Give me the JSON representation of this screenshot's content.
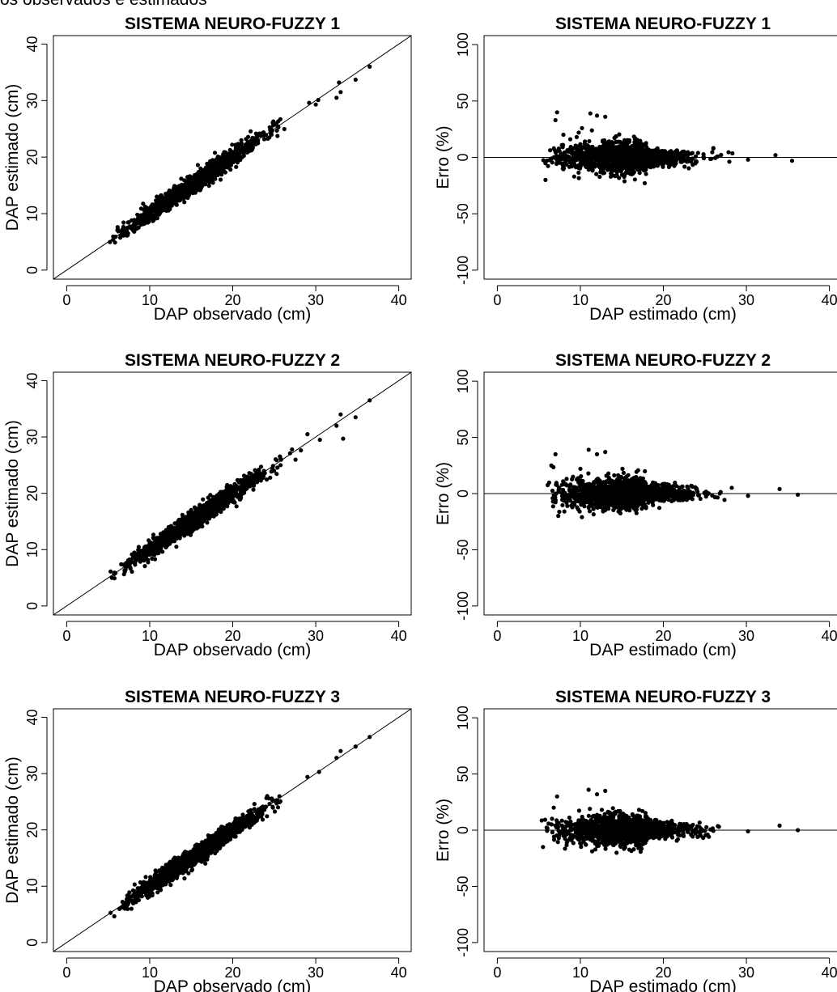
{
  "header_text": "os observados e estimados",
  "chart_data": [
    {
      "type": "scatter",
      "panel": "observed-vs-estimated",
      "title": "SISTEMA NEURO-FUZZY 1",
      "xlabel": "DAP observado (cm)",
      "ylabel": "DAP estimado (cm)",
      "xlim": [
        0,
        40
      ],
      "ylim": [
        0,
        40
      ],
      "xticks": [
        0,
        10,
        20,
        30,
        40
      ],
      "yticks": [
        0,
        10,
        20,
        30,
        40
      ],
      "reference_line": "y = x",
      "seed": 11,
      "points": [
        [
          32.5,
          30.5
        ],
        [
          32.8,
          33.2
        ],
        [
          33.0,
          31.5
        ],
        [
          34.8,
          33.7
        ],
        [
          36.5,
          36.0
        ],
        [
          30.3,
          30.1
        ],
        [
          29.2,
          29.6
        ],
        [
          30.0,
          29.3
        ]
      ]
    },
    {
      "type": "scatter",
      "panel": "error-vs-estimated",
      "title": "SISTEMA NEURO-FUZZY 1",
      "xlabel": "DAP estimado (cm)",
      "ylabel": "Erro (%)",
      "xlim": [
        0,
        40
      ],
      "ylim": [
        -100,
        100
      ],
      "xticks": [
        0,
        10,
        20,
        30,
        40
      ],
      "yticks": [
        -100,
        -50,
        0,
        50,
        100
      ],
      "reference_line": "y = 0",
      "seed": 12,
      "points": [
        [
          7.2,
          40
        ],
        [
          7.0,
          33
        ],
        [
          11.2,
          39
        ],
        [
          12.0,
          37
        ],
        [
          13.0,
          36
        ],
        [
          10.2,
          26
        ],
        [
          9.8,
          22
        ],
        [
          5.8,
          -20
        ],
        [
          33.5,
          2
        ],
        [
          35.5,
          -3
        ],
        [
          30.2,
          -2
        ]
      ]
    },
    {
      "type": "scatter",
      "panel": "observed-vs-estimated",
      "title": "SISTEMA NEURO-FUZZY 2",
      "xlabel": "DAP observado (cm)",
      "ylabel": "DAP estimado (cm)",
      "xlim": [
        0,
        40
      ],
      "ylim": [
        0,
        40
      ],
      "xticks": [
        0,
        10,
        20,
        30,
        40
      ],
      "yticks": [
        0,
        10,
        20,
        30,
        40
      ],
      "reference_line": "y = x",
      "seed": 21,
      "points": [
        [
          32.5,
          32.0
        ],
        [
          33.0,
          34.0
        ],
        [
          33.3,
          29.7
        ],
        [
          34.8,
          33.5
        ],
        [
          36.5,
          36.5
        ],
        [
          30.5,
          29.5
        ],
        [
          29.0,
          30.5
        ]
      ]
    },
    {
      "type": "scatter",
      "panel": "error-vs-estimated",
      "title": "SISTEMA NEURO-FUZZY 2",
      "xlabel": "DAP estimado (cm)",
      "ylabel": "Erro (%)",
      "xlim": [
        0,
        40
      ],
      "ylim": [
        -100,
        100
      ],
      "xticks": [
        0,
        10,
        20,
        30,
        40
      ],
      "yticks": [
        -100,
        -50,
        0,
        50,
        100
      ],
      "reference_line": "y = 0",
      "seed": 22,
      "points": [
        [
          7.0,
          35
        ],
        [
          11.0,
          39
        ],
        [
          12.0,
          35
        ],
        [
          13.0,
          37
        ],
        [
          10.0,
          22
        ],
        [
          6.5,
          25
        ],
        [
          34.0,
          4
        ],
        [
          36.2,
          -1
        ],
        [
          30.2,
          -2
        ]
      ]
    },
    {
      "type": "scatter",
      "panel": "observed-vs-estimated",
      "title": "SISTEMA NEURO-FUZZY 3",
      "xlabel": "DAP observado (cm)",
      "ylabel": "DAP estimado (cm)",
      "xlim": [
        0,
        40
      ],
      "ylim": [
        0,
        40
      ],
      "xticks": [
        0,
        10,
        20,
        30,
        40
      ],
      "yticks": [
        0,
        10,
        20,
        30,
        40
      ],
      "reference_line": "y = x",
      "seed": 31,
      "points": [
        [
          32.5,
          32.8
        ],
        [
          33.0,
          34.0
        ],
        [
          34.8,
          34.8
        ],
        [
          36.5,
          36.5
        ],
        [
          30.4,
          30.3
        ],
        [
          29.0,
          29.4
        ]
      ]
    },
    {
      "type": "scatter",
      "panel": "error-vs-estimated",
      "title": "SISTEMA NEURO-FUZZY 3",
      "xlabel": "DAP estimado (cm)",
      "ylabel": "Erro (%)",
      "xlim": [
        0,
        40
      ],
      "ylim": [
        -100,
        100
      ],
      "xticks": [
        0,
        10,
        20,
        30,
        40
      ],
      "yticks": [
        -100,
        -50,
        0,
        50,
        100
      ],
      "reference_line": "y = 0",
      "seed": 32,
      "points": [
        [
          7.2,
          30
        ],
        [
          11.0,
          36
        ],
        [
          12.0,
          32
        ],
        [
          13.0,
          35
        ],
        [
          6.8,
          20
        ],
        [
          5.5,
          -15
        ],
        [
          34.0,
          4
        ],
        [
          36.2,
          0
        ],
        [
          30.2,
          -1
        ]
      ]
    }
  ]
}
